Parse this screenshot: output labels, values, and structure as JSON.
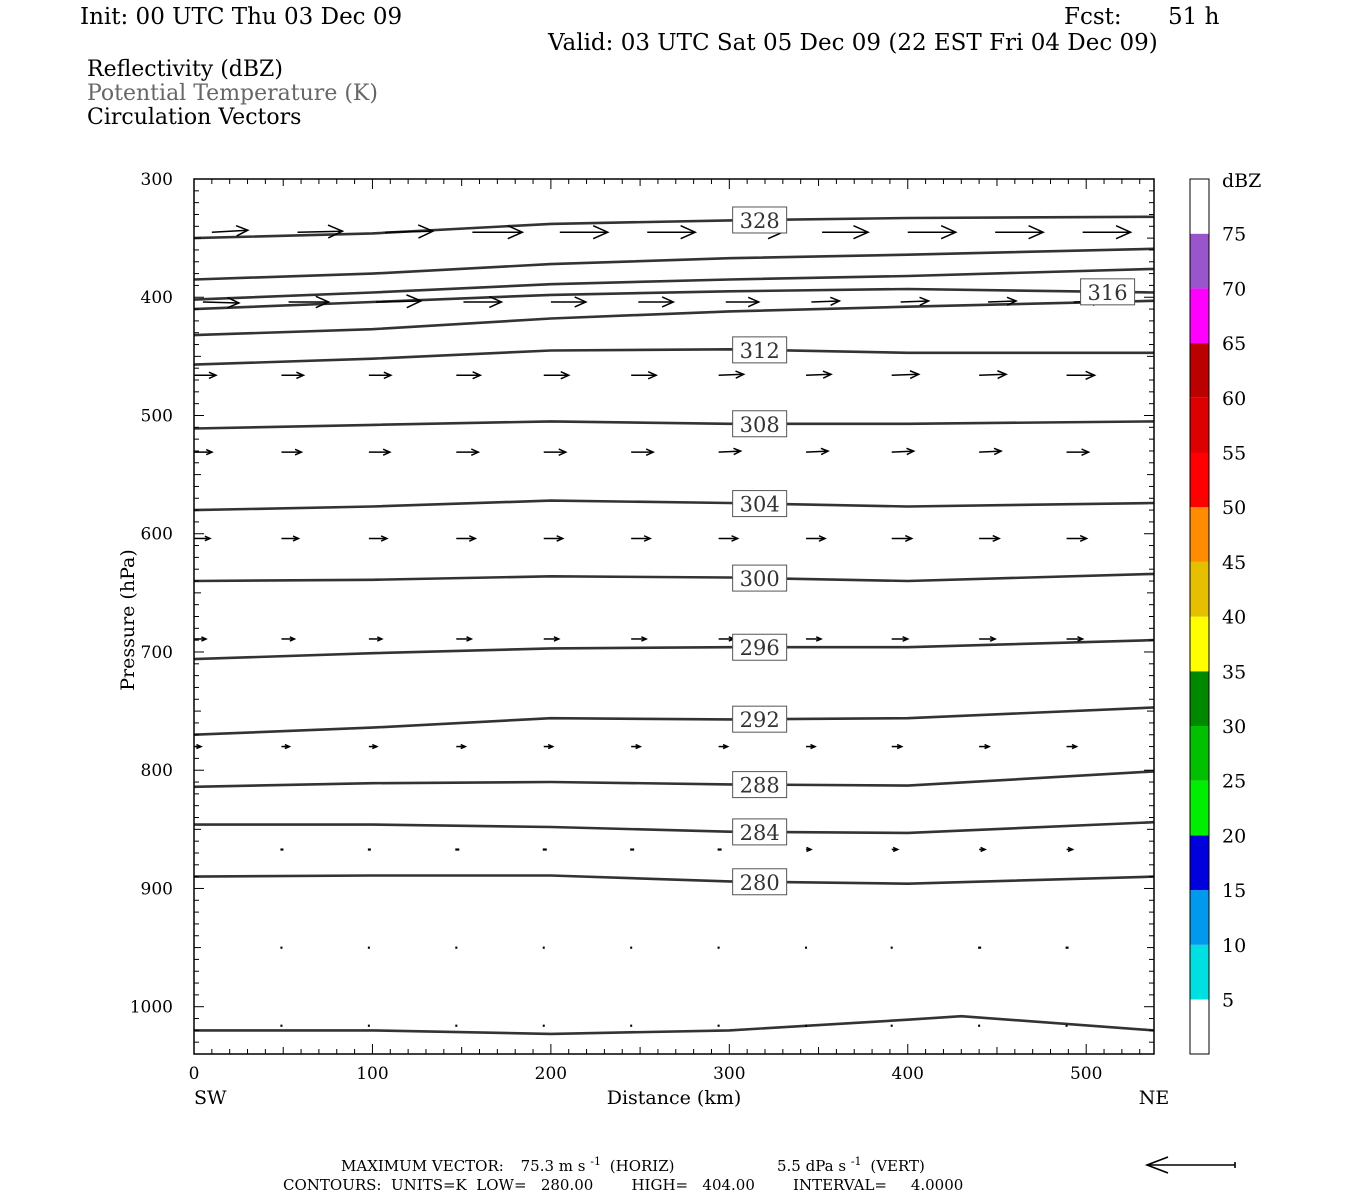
{
  "header": {
    "init": "Init: 00 UTC Thu 03 Dec 09",
    "fcst_label": "Fcst:",
    "fcst_value": "51 h",
    "valid": "Valid: 03 UTC Sat 05 Dec 09 (22 EST Fri 04 Dec 09)"
  },
  "legend": {
    "line1": "Reflectivity (dBZ)",
    "line2": "Potential Temperature (K)",
    "line3": "Circulation Vectors"
  },
  "chart_data": {
    "type": "line",
    "subtype": "vertical cross-section",
    "xlabel": "Distance (km)",
    "ylabel": "Pressure (hPa)",
    "xlim": [
      0,
      538
    ],
    "ylim": [
      300,
      1040
    ],
    "y_reversed": true,
    "x_ticks": [
      0,
      100,
      200,
      300,
      400,
      500
    ],
    "y_ticks": [
      300,
      400,
      500,
      600,
      700,
      800,
      900,
      1000
    ],
    "x_end_labels": {
      "left": "SW",
      "right": "NE"
    },
    "contour_color": "#333333",
    "isentropes": [
      {
        "theta": "328",
        "label_x": 317,
        "points": [
          [
            0,
            350
          ],
          [
            100,
            346
          ],
          [
            200,
            338
          ],
          [
            300,
            335
          ],
          [
            400,
            333
          ],
          [
            538,
            332
          ]
        ]
      },
      {
        "theta": "",
        "points": [
          [
            0,
            385
          ],
          [
            100,
            380
          ],
          [
            200,
            372
          ],
          [
            300,
            367
          ],
          [
            400,
            364
          ],
          [
            538,
            359
          ]
        ]
      },
      {
        "theta": "",
        "points": [
          [
            0,
            402
          ],
          [
            100,
            396
          ],
          [
            200,
            389
          ],
          [
            300,
            385
          ],
          [
            400,
            382
          ],
          [
            538,
            376
          ]
        ]
      },
      {
        "theta": "316",
        "label_x": 512,
        "points": [
          [
            0,
            410
          ],
          [
            100,
            404
          ],
          [
            200,
            398
          ],
          [
            300,
            395
          ],
          [
            400,
            393
          ],
          [
            538,
            396
          ]
        ]
      },
      {
        "theta": "",
        "points": [
          [
            0,
            432
          ],
          [
            100,
            427
          ],
          [
            200,
            418
          ],
          [
            300,
            412
          ],
          [
            400,
            408
          ],
          [
            538,
            403
          ]
        ]
      },
      {
        "theta": "312",
        "label_x": 317,
        "points": [
          [
            0,
            457
          ],
          [
            100,
            452
          ],
          [
            200,
            445
          ],
          [
            300,
            444
          ],
          [
            400,
            447
          ],
          [
            538,
            447
          ]
        ]
      },
      {
        "theta": "308",
        "label_x": 317,
        "points": [
          [
            0,
            511
          ],
          [
            100,
            508
          ],
          [
            200,
            505
          ],
          [
            300,
            507
          ],
          [
            400,
            507
          ],
          [
            538,
            505
          ]
        ]
      },
      {
        "theta": "304",
        "label_x": 317,
        "points": [
          [
            0,
            580
          ],
          [
            100,
            577
          ],
          [
            200,
            572
          ],
          [
            300,
            574
          ],
          [
            400,
            577
          ],
          [
            538,
            574
          ]
        ]
      },
      {
        "theta": "300",
        "label_x": 317,
        "points": [
          [
            0,
            640
          ],
          [
            100,
            639
          ],
          [
            200,
            636
          ],
          [
            300,
            637
          ],
          [
            400,
            640
          ],
          [
            538,
            634
          ]
        ]
      },
      {
        "theta": "296",
        "label_x": 317,
        "points": [
          [
            0,
            706
          ],
          [
            100,
            701
          ],
          [
            200,
            697
          ],
          [
            300,
            696
          ],
          [
            400,
            696
          ],
          [
            538,
            690
          ]
        ]
      },
      {
        "theta": "292",
        "label_x": 317,
        "points": [
          [
            0,
            770
          ],
          [
            100,
            764
          ],
          [
            200,
            756
          ],
          [
            300,
            757
          ],
          [
            400,
            756
          ],
          [
            538,
            747
          ]
        ]
      },
      {
        "theta": "288",
        "label_x": 317,
        "points": [
          [
            0,
            814
          ],
          [
            100,
            811
          ],
          [
            200,
            810
          ],
          [
            300,
            812
          ],
          [
            400,
            813
          ],
          [
            538,
            801
          ]
        ]
      },
      {
        "theta": "284",
        "label_x": 317,
        "points": [
          [
            0,
            846
          ],
          [
            100,
            846
          ],
          [
            200,
            848
          ],
          [
            300,
            852
          ],
          [
            400,
            853
          ],
          [
            538,
            844
          ]
        ]
      },
      {
        "theta": "280",
        "label_x": 317,
        "points": [
          [
            0,
            890
          ],
          [
            100,
            889
          ],
          [
            200,
            889
          ],
          [
            300,
            894
          ],
          [
            400,
            896
          ],
          [
            538,
            890
          ]
        ]
      },
      {
        "theta": "",
        "points": [
          [
            0,
            1020
          ],
          [
            100,
            1020
          ],
          [
            200,
            1023
          ],
          [
            300,
            1020
          ],
          [
            400,
            1011
          ],
          [
            430,
            1008
          ],
          [
            538,
            1020
          ]
        ]
      }
    ],
    "vectors": [
      {
        "p": 345,
        "x": [
          10,
          58,
          107,
          156,
          205,
          254,
          303,
          352,
          400,
          449,
          498,
          545
        ],
        "dx": [
          36,
          45,
          48,
          50,
          48,
          48,
          48,
          46,
          48,
          48,
          48,
          48
        ],
        "dy": [
          -2,
          -1,
          -1,
          0,
          0,
          0,
          0,
          0,
          0,
          0,
          0,
          1
        ]
      },
      {
        "p": 404,
        "x": [
          5,
          53,
          102,
          151,
          200,
          249,
          298,
          346,
          396,
          445,
          493
        ],
        "dx": [
          36,
          40,
          45,
          38,
          35,
          35,
          33,
          28,
          28,
          28,
          28
        ],
        "dy": [
          1,
          0,
          -1,
          0,
          0,
          0,
          0,
          -1,
          -1,
          -1,
          -1
        ]
      },
      {
        "p": 466,
        "x": [
          0,
          49,
          98,
          147,
          196,
          245,
          294,
          343,
          391,
          440,
          489
        ],
        "dx": [
          22,
          22,
          22,
          24,
          25,
          25,
          25,
          25,
          27,
          27,
          28
        ],
        "dy": [
          0,
          0,
          0,
          0,
          0,
          0,
          -1,
          -1,
          -1,
          -1,
          0
        ]
      },
      {
        "p": 531,
        "x": [
          0,
          49,
          98,
          147,
          196,
          245,
          294,
          343,
          391,
          440,
          489
        ],
        "dx": [
          18,
          20,
          21,
          22,
          22,
          22,
          22,
          22,
          22,
          22,
          22
        ],
        "dy": [
          0,
          0,
          0,
          0,
          0,
          0,
          -1,
          -1,
          -1,
          -1,
          0
        ]
      },
      {
        "p": 604,
        "x": [
          0,
          49,
          98,
          147,
          196,
          245,
          294,
          343,
          391,
          440,
          489
        ],
        "dx": [
          16,
          17,
          18,
          19,
          19,
          19,
          19,
          19,
          20,
          20,
          20
        ],
        "dy": [
          0,
          0,
          0,
          0,
          0,
          0,
          0,
          0,
          0,
          0,
          0
        ]
      },
      {
        "p": 689,
        "x": [
          0,
          49,
          98,
          147,
          196,
          245,
          294,
          343,
          391,
          440,
          489
        ],
        "dx": [
          12,
          13,
          13,
          15,
          15,
          15,
          15,
          15,
          16,
          16,
          16
        ],
        "dy": [
          0,
          0,
          0,
          0,
          0,
          0,
          0,
          0,
          0,
          0,
          0
        ]
      },
      {
        "p": 780,
        "x": [
          0,
          49,
          98,
          147,
          196,
          245,
          294,
          343,
          391,
          440,
          489
        ],
        "dx": [
          7,
          8,
          8,
          9,
          9,
          9,
          9,
          9,
          10,
          10,
          10
        ],
        "dy": [
          0,
          0,
          0,
          0,
          0,
          0,
          0,
          0,
          0,
          0,
          0
        ]
      },
      {
        "p": 867,
        "x": [
          49,
          98,
          147,
          196,
          245,
          294,
          343,
          391,
          440,
          489
        ],
        "dx": [
          2,
          2,
          3,
          3,
          3,
          3,
          5,
          6,
          6,
          6
        ],
        "dy": [
          0,
          0,
          0,
          0,
          0,
          0,
          0,
          0,
          0,
          0
        ]
      },
      {
        "p": 950,
        "x": [
          49,
          98,
          147,
          196,
          245,
          294,
          343,
          391,
          440,
          489
        ],
        "dx": [
          1,
          1,
          1,
          1,
          1,
          1,
          1,
          1,
          2,
          2
        ],
        "dy": [
          0,
          0,
          0,
          0,
          0,
          0,
          0,
          0,
          0,
          0
        ]
      },
      {
        "p": 1016,
        "x": [
          49,
          98,
          147,
          196,
          245,
          294,
          343,
          391,
          440,
          489
        ],
        "dx": [
          1,
          1,
          1,
          1,
          1,
          1,
          1,
          1,
          1,
          1
        ],
        "dy": [
          0,
          0,
          0,
          0,
          0,
          0,
          0,
          0,
          0,
          0
        ]
      }
    ],
    "colorbar": {
      "units": "dBZ",
      "levels": [
        "5",
        "10",
        "15",
        "20",
        "25",
        "30",
        "35",
        "40",
        "45",
        "50",
        "55",
        "60",
        "65",
        "70",
        "75"
      ],
      "colors": [
        "#ffffff",
        "#00e0e0",
        "#0099ee",
        "#0000dd",
        "#00ee00",
        "#00c000",
        "#008800",
        "#ffff00",
        "#e6bf00",
        "#ff8c00",
        "#ff0000",
        "#dd0000",
        "#bb0000",
        "#ff00ff",
        "#9955cc",
        "#ffffff"
      ]
    }
  },
  "footer": {
    "max_vector_label": "MAXIMUM VECTOR:",
    "horiz_value": "75.3 m s",
    "horiz_exp": "-1",
    "horiz_tag": "(HORIZ)",
    "vert_value": "5.5 dPa s",
    "vert_exp": "-1",
    "vert_tag": "(VERT)",
    "contours": "CONTOURS:  UNITS=K  LOW=   280.00        HIGH=   404.00        INTERVAL=     4.0000"
  }
}
